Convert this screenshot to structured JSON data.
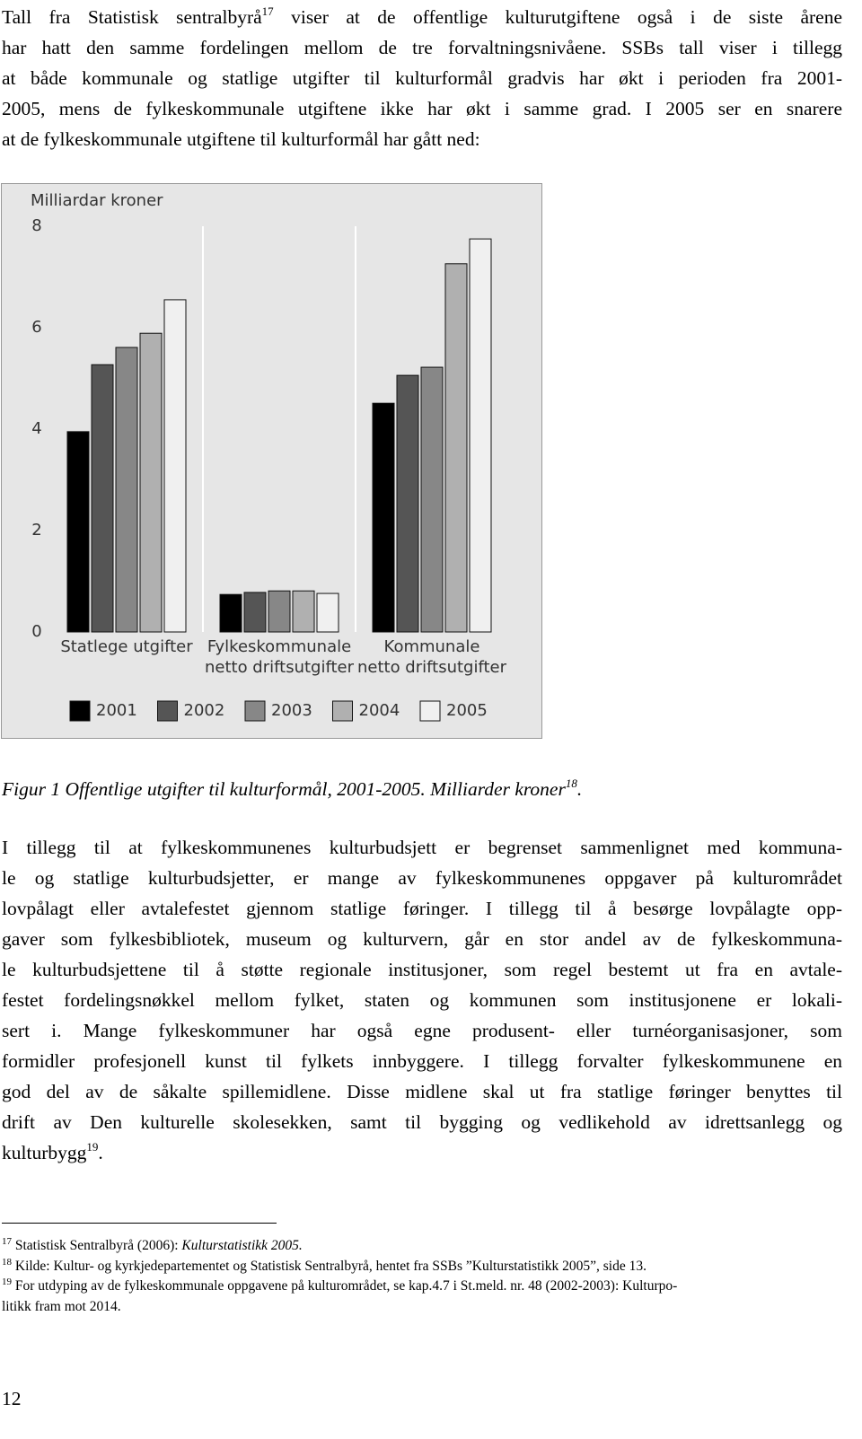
{
  "paragraph1": {
    "lines": [
      {
        "before": "Tall fra Statistisk sentralbyrå",
        "ref": "17",
        "after": " viser at de offentlige kulturutgiftene også i de siste årene"
      },
      "har hatt den samme fordelingen mellom de tre forvaltningsnivåene. SSBs tall viser i tillegg",
      "at både kommunale og statlige utgifter til kulturformål gradvis har økt i perioden fra 2001-",
      "2005, mens de fylkeskommunale utgiftene ikke har økt i samme grad. I 2005 ser en snarere",
      "at de fylkeskommunale utgiftene til kulturformål har gått ned:"
    ]
  },
  "chart_data": {
    "type": "bar",
    "y_label": "Milliardar kroner",
    "categories": [
      [
        "Statlege utgifter"
      ],
      [
        "Fylkeskommunale",
        "netto driftsutgifter"
      ],
      [
        "Kommunale",
        "netto driftsutgifter"
      ]
    ],
    "series": [
      {
        "name": "2001",
        "color": "#000000",
        "values": [
          3.95,
          0.74,
          4.51
        ]
      },
      {
        "name": "2002",
        "color": "#555555",
        "values": [
          5.27,
          0.78,
          5.06
        ]
      },
      {
        "name": "2003",
        "color": "#878787",
        "values": [
          5.61,
          0.81,
          5.22
        ]
      },
      {
        "name": "2004",
        "color": "#b0b0b0",
        "values": [
          5.89,
          0.81,
          7.26
        ]
      },
      {
        "name": "2005",
        "color": "#f0f0f0",
        "values": [
          6.55,
          0.76,
          7.75
        ]
      }
    ],
    "ylim": [
      0,
      8
    ],
    "yticks": [
      0,
      2,
      4,
      6,
      8
    ],
    "legend": "bottom"
  },
  "caption": {
    "before": "Figur 1 Offentlige utgifter til kulturformål, 2001-2005. Milliarder kroner",
    "ref": "18",
    "after": "."
  },
  "paragraph2": {
    "lines": [
      "I tillegg til at fylkeskommunenes kulturbudsjett er begrenset sammenlignet med kommuna-",
      "le og statlige kulturbudsjetter, er mange av fylkeskommunenes oppgaver på kulturområdet",
      "lovpålagt eller avtalefestet gjennom statlige føringer. I tillegg til å besørge lovpålagte opp-",
      "gaver som fylkesbibliotek, museum og kulturvern, går en stor andel av de fylkeskommuna-",
      "le kulturbudsjettene til å støtte regionale institusjoner, som regel bestemt ut fra en avtale-",
      "festet fordelingsnøkkel mellom fylket, staten og kommunen som institusjonene er lokali-",
      "sert i. Mange fylkeskommuner har også egne produsent- eller turnéorganisasjoner, som",
      "formidler profesjonell kunst til fylkets innbyggere. I tillegg forvalter fylkeskommunene en",
      "god del av de såkalte spillemidlene. Disse midlene skal ut fra statlige føringer benyttes til",
      "drift av Den kulturelle skolesekken, samt til bygging og vedlikehold av idrettsanlegg og",
      {
        "before": "kulturbygg",
        "ref": "19",
        "after": "."
      }
    ]
  },
  "footnotes": [
    {
      "number": "17",
      "text": "Statistisk Sentralbyrå (2006): ",
      "title": "Kulturstatistikk 2005."
    },
    {
      "number": "18",
      "text": "Kilde: Kultur- og kyrkjedepartementet og Statistisk Sentralbyrå, hentet fra SSBs ”Kulturstatistikk 2005”, side 13."
    },
    {
      "number": "19",
      "text": "For utdyping av de fylkeskommunale oppgavene på kulturområdet, se kap.4.7 i St.meld. nr. 48 (2002-2003): Kulturpo-",
      "text2": "litikk fram mot 2014."
    }
  ],
  "page_number": "12"
}
